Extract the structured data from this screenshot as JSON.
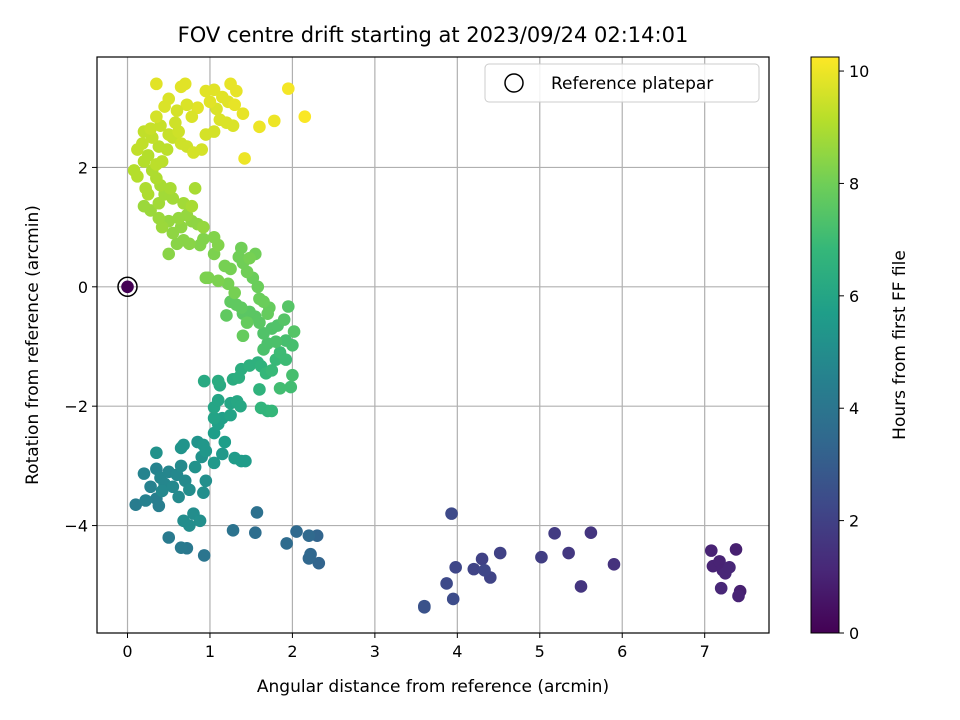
{
  "chart_data": {
    "type": "scatter",
    "title": "FOV centre drift starting at 2023/09/24 02:14:01",
    "xlabel": "Angular distance from reference (arcmin)",
    "ylabel": "Rotation from reference (arcmin)",
    "xlim": [
      -0.37,
      7.78
    ],
    "ylim": [
      -5.8,
      3.85
    ],
    "xticks": [
      0,
      1,
      2,
      3,
      4,
      5,
      6,
      7
    ],
    "yticks": [
      -4,
      -2,
      0,
      2
    ],
    "grid": true,
    "legend": {
      "placement": "top-right",
      "entries": [
        {
          "label": "Reference platepar",
          "marker": "open-circle"
        }
      ]
    },
    "reference_point": {
      "x": 0,
      "y": 0,
      "hours": 0
    },
    "colorbar": {
      "label": "Hours from first FF file",
      "min": 0,
      "max": 10.25,
      "ticks": [
        0,
        2,
        4,
        6,
        8,
        10
      ],
      "colormap": "viridis"
    },
    "colors": {
      "viridis": [
        "#440154",
        "#482878",
        "#3e4989",
        "#31688e",
        "#26828e",
        "#1f9e89",
        "#35b779",
        "#6ece58",
        "#b5de2b",
        "#fde725"
      ]
    },
    "points": [
      {
        "x": 7.38,
        "y": -4.4,
        "h": 0.9
      },
      {
        "x": 7.43,
        "y": -5.1,
        "h": 0.9
      },
      {
        "x": 7.41,
        "y": -5.18,
        "h": 1.0
      },
      {
        "x": 7.08,
        "y": -4.42,
        "h": 1.0
      },
      {
        "x": 7.1,
        "y": -4.68,
        "h": 1.0
      },
      {
        "x": 7.18,
        "y": -4.6,
        "h": 1.0
      },
      {
        "x": 7.22,
        "y": -4.75,
        "h": 1.0
      },
      {
        "x": 7.25,
        "y": -4.8,
        "h": 1.1
      },
      {
        "x": 7.3,
        "y": -4.7,
        "h": 1.1
      },
      {
        "x": 7.2,
        "y": -5.05,
        "h": 1.1
      },
      {
        "x": 5.9,
        "y": -4.65,
        "h": 1.5
      },
      {
        "x": 5.62,
        "y": -4.12,
        "h": 1.6
      },
      {
        "x": 5.5,
        "y": -5.02,
        "h": 1.6
      },
      {
        "x": 5.35,
        "y": -4.46,
        "h": 1.7
      },
      {
        "x": 5.18,
        "y": -4.13,
        "h": 1.8
      },
      {
        "x": 5.02,
        "y": -4.53,
        "h": 1.9
      },
      {
        "x": 4.52,
        "y": -4.46,
        "h": 2.0
      },
      {
        "x": 4.3,
        "y": -4.56,
        "h": 2.0
      },
      {
        "x": 4.4,
        "y": -4.87,
        "h": 2.1
      },
      {
        "x": 4.2,
        "y": -4.73,
        "h": 2.1
      },
      {
        "x": 4.33,
        "y": -4.75,
        "h": 2.2
      },
      {
        "x": 3.98,
        "y": -4.7,
        "h": 2.2
      },
      {
        "x": 3.93,
        "y": -3.8,
        "h": 2.3
      },
      {
        "x": 3.87,
        "y": -4.97,
        "h": 2.3
      },
      {
        "x": 3.95,
        "y": -5.23,
        "h": 2.4
      },
      {
        "x": 3.6,
        "y": -5.35,
        "h": 2.6
      },
      {
        "x": 3.6,
        "y": -5.37,
        "h": 2.6
      },
      {
        "x": 2.32,
        "y": -4.63,
        "h": 3.3
      },
      {
        "x": 2.3,
        "y": -4.17,
        "h": 3.3
      },
      {
        "x": 2.22,
        "y": -4.48,
        "h": 3.4
      },
      {
        "x": 2.2,
        "y": -4.55,
        "h": 3.4
      },
      {
        "x": 2.2,
        "y": -4.17,
        "h": 3.5
      },
      {
        "x": 2.05,
        "y": -4.1,
        "h": 3.5
      },
      {
        "x": 1.93,
        "y": -4.3,
        "h": 3.6
      },
      {
        "x": 1.55,
        "y": -4.12,
        "h": 3.7
      },
      {
        "x": 1.57,
        "y": -3.78,
        "h": 3.8
      },
      {
        "x": 1.28,
        "y": -4.08,
        "h": 3.9
      },
      {
        "x": 0.93,
        "y": -4.5,
        "h": 4.0
      },
      {
        "x": 0.72,
        "y": -4.38,
        "h": 4.1
      },
      {
        "x": 0.65,
        "y": -4.37,
        "h": 4.2
      },
      {
        "x": 0.5,
        "y": -4.2,
        "h": 4.2
      },
      {
        "x": 0.1,
        "y": -3.65,
        "h": 4.3
      },
      {
        "x": 0.38,
        "y": -3.67,
        "h": 4.4
      },
      {
        "x": 0.35,
        "y": -3.55,
        "h": 4.4
      },
      {
        "x": 0.22,
        "y": -3.58,
        "h": 4.5
      },
      {
        "x": 0.28,
        "y": -3.35,
        "h": 4.5
      },
      {
        "x": 0.2,
        "y": -3.13,
        "h": 4.6
      },
      {
        "x": 0.35,
        "y": -3.05,
        "h": 4.6
      },
      {
        "x": 0.4,
        "y": -3.2,
        "h": 4.7
      },
      {
        "x": 0.45,
        "y": -3.3,
        "h": 4.7
      },
      {
        "x": 0.5,
        "y": -3.1,
        "h": 4.7
      },
      {
        "x": 0.42,
        "y": -3.42,
        "h": 4.8
      },
      {
        "x": 0.55,
        "y": -3.35,
        "h": 4.8
      },
      {
        "x": 0.6,
        "y": -3.15,
        "h": 4.8
      },
      {
        "x": 0.65,
        "y": -3.0,
        "h": 4.9
      },
      {
        "x": 0.7,
        "y": -3.25,
        "h": 4.9
      },
      {
        "x": 0.62,
        "y": -3.52,
        "h": 4.9
      },
      {
        "x": 0.75,
        "y": -3.4,
        "h": 5.0
      },
      {
        "x": 0.8,
        "y": -3.8,
        "h": 5.0
      },
      {
        "x": 0.68,
        "y": -3.92,
        "h": 5.0
      },
      {
        "x": 0.75,
        "y": -4.0,
        "h": 5.0
      },
      {
        "x": 0.88,
        "y": -3.92,
        "h": 5.1
      },
      {
        "x": 0.92,
        "y": -3.45,
        "h": 5.1
      },
      {
        "x": 0.95,
        "y": -3.25,
        "h": 5.1
      },
      {
        "x": 0.82,
        "y": -3.02,
        "h": 5.2
      },
      {
        "x": 0.9,
        "y": -2.85,
        "h": 5.2
      },
      {
        "x": 0.35,
        "y": -2.78,
        "h": 5.2
      },
      {
        "x": 0.65,
        "y": -2.7,
        "h": 5.3
      },
      {
        "x": 0.68,
        "y": -2.65,
        "h": 5.3
      },
      {
        "x": 0.85,
        "y": -2.6,
        "h": 5.3
      },
      {
        "x": 0.92,
        "y": -2.65,
        "h": 5.4
      },
      {
        "x": 0.95,
        "y": -2.75,
        "h": 5.4
      },
      {
        "x": 1.05,
        "y": -2.95,
        "h": 5.5
      },
      {
        "x": 1.15,
        "y": -2.8,
        "h": 5.5
      },
      {
        "x": 1.3,
        "y": -2.87,
        "h": 5.6
      },
      {
        "x": 1.38,
        "y": -2.92,
        "h": 5.6
      },
      {
        "x": 1.43,
        "y": -2.92,
        "h": 5.6
      },
      {
        "x": 1.18,
        "y": -2.6,
        "h": 5.7
      },
      {
        "x": 1.05,
        "y": -2.45,
        "h": 5.7
      },
      {
        "x": 1.1,
        "y": -2.3,
        "h": 5.8
      },
      {
        "x": 1.15,
        "y": -2.2,
        "h": 5.8
      },
      {
        "x": 1.25,
        "y": -2.15,
        "h": 5.9
      },
      {
        "x": 1.05,
        "y": -2.2,
        "h": 5.9
      },
      {
        "x": 1.05,
        "y": -2.02,
        "h": 6.0
      },
      {
        "x": 1.1,
        "y": -1.9,
        "h": 6.0
      },
      {
        "x": 1.25,
        "y": -1.95,
        "h": 6.0
      },
      {
        "x": 1.33,
        "y": -1.92,
        "h": 6.1
      },
      {
        "x": 1.37,
        "y": -2.0,
        "h": 6.1
      },
      {
        "x": 0.93,
        "y": -1.58,
        "h": 6.2
      },
      {
        "x": 1.12,
        "y": -1.65,
        "h": 6.2
      },
      {
        "x": 1.1,
        "y": -1.58,
        "h": 6.3
      },
      {
        "x": 1.28,
        "y": -1.55,
        "h": 6.3
      },
      {
        "x": 1.35,
        "y": -1.52,
        "h": 6.4
      },
      {
        "x": 1.38,
        "y": -1.38,
        "h": 6.4
      },
      {
        "x": 1.48,
        "y": -1.32,
        "h": 6.5
      },
      {
        "x": 1.58,
        "y": -1.27,
        "h": 6.5
      },
      {
        "x": 1.62,
        "y": -1.33,
        "h": 6.6
      },
      {
        "x": 1.6,
        "y": -1.72,
        "h": 6.6
      },
      {
        "x": 1.62,
        "y": -2.03,
        "h": 6.7
      },
      {
        "x": 1.7,
        "y": -2.08,
        "h": 6.7
      },
      {
        "x": 1.75,
        "y": -2.08,
        "h": 6.8
      },
      {
        "x": 1.68,
        "y": -1.45,
        "h": 6.8
      },
      {
        "x": 1.75,
        "y": -1.4,
        "h": 6.9
      },
      {
        "x": 1.8,
        "y": -1.22,
        "h": 6.9
      },
      {
        "x": 1.85,
        "y": -1.1,
        "h": 7.0
      },
      {
        "x": 1.92,
        "y": -1.22,
        "h": 7.0
      },
      {
        "x": 1.98,
        "y": -1.68,
        "h": 7.1
      },
      {
        "x": 1.85,
        "y": -1.7,
        "h": 7.1
      },
      {
        "x": 2.0,
        "y": -1.48,
        "h": 7.2
      },
      {
        "x": 2.0,
        "y": -0.98,
        "h": 7.2
      },
      {
        "x": 1.92,
        "y": -0.9,
        "h": 7.2
      },
      {
        "x": 1.8,
        "y": -0.92,
        "h": 7.3
      },
      {
        "x": 1.7,
        "y": -0.95,
        "h": 7.3
      },
      {
        "x": 1.65,
        "y": -1.05,
        "h": 7.3
      },
      {
        "x": 1.65,
        "y": -0.78,
        "h": 7.4
      },
      {
        "x": 1.75,
        "y": -0.7,
        "h": 7.4
      },
      {
        "x": 1.82,
        "y": -0.65,
        "h": 7.4
      },
      {
        "x": 1.9,
        "y": -0.55,
        "h": 7.5
      },
      {
        "x": 1.95,
        "y": -0.33,
        "h": 7.5
      },
      {
        "x": 2.02,
        "y": -0.75,
        "h": 7.5
      },
      {
        "x": 1.6,
        "y": -0.6,
        "h": 7.6
      },
      {
        "x": 1.55,
        "y": -0.5,
        "h": 7.6
      },
      {
        "x": 1.48,
        "y": -0.42,
        "h": 7.6
      },
      {
        "x": 1.4,
        "y": -0.45,
        "h": 7.6
      },
      {
        "x": 1.38,
        "y": -0.35,
        "h": 7.7
      },
      {
        "x": 1.32,
        "y": -0.3,
        "h": 7.7
      },
      {
        "x": 1.25,
        "y": -0.25,
        "h": 7.7
      },
      {
        "x": 1.2,
        "y": -0.48,
        "h": 7.7
      },
      {
        "x": 1.4,
        "y": -0.82,
        "h": 7.8
      },
      {
        "x": 1.45,
        "y": -0.6,
        "h": 7.8
      },
      {
        "x": 1.72,
        "y": -0.35,
        "h": 7.8
      },
      {
        "x": 1.7,
        "y": -0.45,
        "h": 7.8
      },
      {
        "x": 1.65,
        "y": -0.25,
        "h": 7.9
      },
      {
        "x": 1.6,
        "y": -0.2,
        "h": 7.9
      },
      {
        "x": 1.58,
        "y": 0.0,
        "h": 7.9
      },
      {
        "x": 1.52,
        "y": 0.15,
        "h": 7.9
      },
      {
        "x": 1.45,
        "y": 0.25,
        "h": 8.0
      },
      {
        "x": 1.4,
        "y": 0.4,
        "h": 8.0
      },
      {
        "x": 1.35,
        "y": 0.5,
        "h": 8.0
      },
      {
        "x": 1.38,
        "y": 0.65,
        "h": 8.0
      },
      {
        "x": 1.55,
        "y": 0.55,
        "h": 8.0
      },
      {
        "x": 1.48,
        "y": 0.48,
        "h": 8.1
      },
      {
        "x": 1.25,
        "y": 0.3,
        "h": 8.1
      },
      {
        "x": 1.18,
        "y": 0.35,
        "h": 8.1
      },
      {
        "x": 1.22,
        "y": 0.05,
        "h": 8.1
      },
      {
        "x": 1.3,
        "y": -0.1,
        "h": 8.1
      },
      {
        "x": 1.1,
        "y": 0.1,
        "h": 8.2
      },
      {
        "x": 0.98,
        "y": 0.15,
        "h": 8.2
      },
      {
        "x": 0.95,
        "y": 0.15,
        "h": 8.2
      },
      {
        "x": 1.05,
        "y": 0.55,
        "h": 8.2
      },
      {
        "x": 1.1,
        "y": 0.7,
        "h": 8.3
      },
      {
        "x": 1.05,
        "y": 0.83,
        "h": 8.3
      },
      {
        "x": 0.92,
        "y": 0.8,
        "h": 8.3
      },
      {
        "x": 0.88,
        "y": 0.7,
        "h": 8.3
      },
      {
        "x": 0.75,
        "y": 0.72,
        "h": 8.4
      },
      {
        "x": 0.68,
        "y": 0.78,
        "h": 8.4
      },
      {
        "x": 0.6,
        "y": 0.72,
        "h": 8.4
      },
      {
        "x": 0.5,
        "y": 0.55,
        "h": 8.4
      },
      {
        "x": 0.55,
        "y": 0.9,
        "h": 8.5
      },
      {
        "x": 0.65,
        "y": 1.0,
        "h": 8.5
      },
      {
        "x": 0.78,
        "y": 1.1,
        "h": 8.5
      },
      {
        "x": 0.85,
        "y": 1.05,
        "h": 8.5
      },
      {
        "x": 0.92,
        "y": 1.0,
        "h": 8.6
      },
      {
        "x": 0.72,
        "y": 1.2,
        "h": 8.6
      },
      {
        "x": 0.62,
        "y": 1.15,
        "h": 8.6
      },
      {
        "x": 0.5,
        "y": 1.1,
        "h": 8.6
      },
      {
        "x": 0.42,
        "y": 1.0,
        "h": 8.7
      },
      {
        "x": 0.38,
        "y": 1.15,
        "h": 8.7
      },
      {
        "x": 0.28,
        "y": 1.28,
        "h": 8.7
      },
      {
        "x": 0.2,
        "y": 1.35,
        "h": 8.7
      },
      {
        "x": 0.38,
        "y": 1.4,
        "h": 8.8
      },
      {
        "x": 0.45,
        "y": 1.55,
        "h": 8.8
      },
      {
        "x": 0.55,
        "y": 1.48,
        "h": 8.8
      },
      {
        "x": 0.68,
        "y": 1.4,
        "h": 8.8
      },
      {
        "x": 0.78,
        "y": 1.35,
        "h": 8.9
      },
      {
        "x": 0.82,
        "y": 1.65,
        "h": 8.9
      },
      {
        "x": 0.52,
        "y": 1.65,
        "h": 8.9
      },
      {
        "x": 0.4,
        "y": 1.7,
        "h": 8.9
      },
      {
        "x": 0.22,
        "y": 1.65,
        "h": 9.0
      },
      {
        "x": 0.25,
        "y": 1.55,
        "h": 9.0
      },
      {
        "x": 0.35,
        "y": 1.82,
        "h": 9.0
      },
      {
        "x": 0.3,
        "y": 1.95,
        "h": 9.0
      },
      {
        "x": 0.12,
        "y": 1.85,
        "h": 9.1
      },
      {
        "x": 0.08,
        "y": 1.95,
        "h": 9.1
      },
      {
        "x": 0.2,
        "y": 2.1,
        "h": 9.1
      },
      {
        "x": 0.25,
        "y": 2.2,
        "h": 9.1
      },
      {
        "x": 0.35,
        "y": 2.05,
        "h": 9.2
      },
      {
        "x": 0.42,
        "y": 2.1,
        "h": 9.2
      },
      {
        "x": 0.48,
        "y": 2.3,
        "h": 9.2
      },
      {
        "x": 0.38,
        "y": 2.35,
        "h": 9.2
      },
      {
        "x": 0.3,
        "y": 2.5,
        "h": 9.3
      },
      {
        "x": 0.18,
        "y": 2.4,
        "h": 9.3
      },
      {
        "x": 0.12,
        "y": 2.3,
        "h": 9.3
      },
      {
        "x": 0.2,
        "y": 2.6,
        "h": 9.3
      },
      {
        "x": 0.28,
        "y": 2.65,
        "h": 9.4
      },
      {
        "x": 0.4,
        "y": 2.7,
        "h": 9.4
      },
      {
        "x": 0.5,
        "y": 2.55,
        "h": 9.4
      },
      {
        "x": 0.55,
        "y": 2.5,
        "h": 9.4
      },
      {
        "x": 0.62,
        "y": 2.6,
        "h": 9.5
      },
      {
        "x": 0.58,
        "y": 2.75,
        "h": 9.5
      },
      {
        "x": 0.65,
        "y": 2.4,
        "h": 9.5
      },
      {
        "x": 0.72,
        "y": 2.35,
        "h": 9.5
      },
      {
        "x": 0.8,
        "y": 2.25,
        "h": 9.6
      },
      {
        "x": 0.9,
        "y": 2.3,
        "h": 9.6
      },
      {
        "x": 0.95,
        "y": 2.55,
        "h": 9.6
      },
      {
        "x": 1.05,
        "y": 2.6,
        "h": 9.6
      },
      {
        "x": 1.12,
        "y": 2.8,
        "h": 9.7
      },
      {
        "x": 1.2,
        "y": 2.75,
        "h": 9.7
      },
      {
        "x": 1.28,
        "y": 2.7,
        "h": 9.7
      },
      {
        "x": 1.08,
        "y": 2.98,
        "h": 9.7
      },
      {
        "x": 1.0,
        "y": 3.1,
        "h": 9.8
      },
      {
        "x": 0.95,
        "y": 3.28,
        "h": 9.8
      },
      {
        "x": 1.05,
        "y": 3.3,
        "h": 9.8
      },
      {
        "x": 1.15,
        "y": 3.18,
        "h": 9.8
      },
      {
        "x": 1.22,
        "y": 3.1,
        "h": 9.8
      },
      {
        "x": 1.3,
        "y": 3.05,
        "h": 9.9
      },
      {
        "x": 1.25,
        "y": 3.4,
        "h": 9.9
      },
      {
        "x": 1.32,
        "y": 3.28,
        "h": 9.9
      },
      {
        "x": 1.4,
        "y": 2.9,
        "h": 9.9
      },
      {
        "x": 1.6,
        "y": 2.68,
        "h": 10.0
      },
      {
        "x": 1.78,
        "y": 2.78,
        "h": 10.0
      },
      {
        "x": 1.42,
        "y": 2.15,
        "h": 10.0
      },
      {
        "x": 0.85,
        "y": 3.0,
        "h": 9.8
      },
      {
        "x": 0.78,
        "y": 2.85,
        "h": 9.7
      },
      {
        "x": 0.72,
        "y": 3.05,
        "h": 9.7
      },
      {
        "x": 0.7,
        "y": 3.4,
        "h": 9.8
      },
      {
        "x": 0.65,
        "y": 3.35,
        "h": 9.8
      },
      {
        "x": 0.5,
        "y": 3.15,
        "h": 9.7
      },
      {
        "x": 0.45,
        "y": 3.02,
        "h": 9.7
      },
      {
        "x": 0.35,
        "y": 2.85,
        "h": 9.6
      },
      {
        "x": 0.6,
        "y": 2.95,
        "h": 9.6
      },
      {
        "x": 0.35,
        "y": 3.4,
        "h": 9.8
      },
      {
        "x": 1.95,
        "y": 3.32,
        "h": 10.1
      },
      {
        "x": 2.15,
        "y": 2.85,
        "h": 10.2
      }
    ]
  }
}
